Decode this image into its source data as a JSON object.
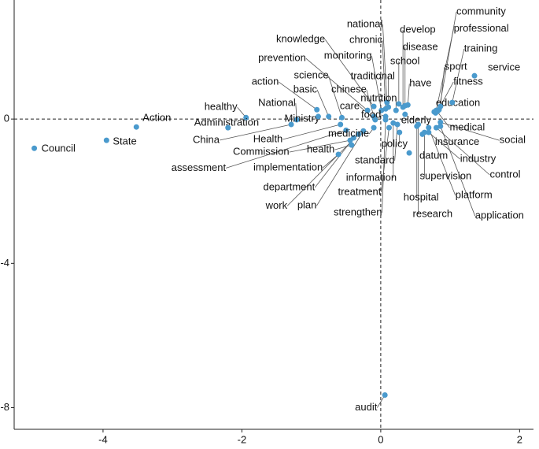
{
  "chart_data": {
    "type": "scatter",
    "color": "#4a9acd",
    "xlim": [
      -5.28,
      2.2
    ],
    "ylim": [
      -8.6,
      3.3
    ],
    "xticks": [
      -4,
      -2,
      0,
      2
    ],
    "yticks": [
      -8,
      -4,
      0
    ],
    "hline": 0,
    "vline": 0,
    "labels": [
      "Council",
      "State",
      "Action",
      "healthy",
      "Administration",
      "China",
      "National",
      "Ministry",
      "Health",
      "Commission",
      "assessment",
      "health",
      "implementation",
      "department",
      "work",
      "plan",
      "medicine",
      "action",
      "basic",
      "science",
      "chinese",
      "prevention",
      "knowledge",
      "monitoring",
      "chronic",
      "national",
      "traditional",
      "care",
      "food",
      "nutrition",
      "school",
      "develop",
      "disease",
      "have",
      "elderly",
      "policy",
      "standard",
      "information",
      "treatment",
      "strengthen",
      "datum",
      "supervision",
      "hospital",
      "research",
      "platform",
      "application",
      "insurance",
      "industry",
      "control",
      "medical",
      "social",
      "education",
      "fitness",
      "sport",
      "service",
      "training",
      "professional",
      "community",
      "audit"
    ],
    "x": [
      -4.99,
      -3.95,
      -3.52,
      -1.94,
      -2.2,
      -1.29,
      -1.21,
      -0.9,
      -0.58,
      -0.44,
      -0.5,
      -0.42,
      -0.61,
      -0.39,
      -0.32,
      -0.25,
      -0.1,
      -0.92,
      -0.75,
      -0.56,
      -0.1,
      -0.19,
      -0.1,
      0.01,
      0.07,
      0.09,
      0.11,
      -0.08,
      0.07,
      0.22,
      0.26,
      0.32,
      0.35,
      0.39,
      0.35,
      0.27,
      0.24,
      0.18,
      0.12,
      0.07,
      0.41,
      0.63,
      0.52,
      0.54,
      0.69,
      0.86,
      0.6,
      0.69,
      0.8,
      0.8,
      0.86,
      0.77,
      0.82,
      0.86,
      1.35,
      1.03,
      0.79,
      0.84,
      0.06
    ],
    "values": [
      -0.81,
      -0.59,
      -0.22,
      0.04,
      -0.24,
      -0.15,
      -0.02,
      0.07,
      -0.15,
      -0.59,
      -0.31,
      -0.72,
      -0.98,
      -0.52,
      -0.42,
      -0.33,
      -0.24,
      0.26,
      0.07,
      0.04,
      0.07,
      0.24,
      0.35,
      0.24,
      0.28,
      0.46,
      0.33,
      -0.02,
      0.07,
      0.24,
      0.42,
      0.33,
      0.37,
      0.39,
      0.13,
      -0.37,
      -0.15,
      -0.11,
      -0.24,
      -0.02,
      -0.94,
      -0.37,
      -0.2,
      -0.15,
      -0.24,
      -0.2,
      -0.42,
      -0.37,
      -0.24,
      0.24,
      -0.09,
      0.2,
      0.22,
      0.35,
      1.2,
      0.46,
      0.17,
      0.26,
      -7.65
    ]
  }
}
